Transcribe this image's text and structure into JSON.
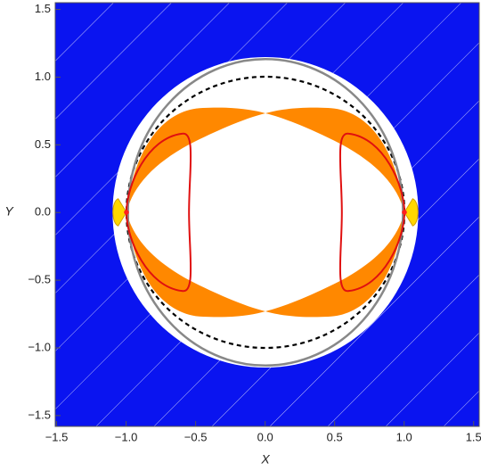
{
  "chart_data": {
    "type": "region",
    "x_label": "X",
    "y_label": "Y",
    "xlim": [
      -1.51,
      1.54
    ],
    "ylim": [
      -1.58,
      1.55
    ],
    "xticks": [
      {
        "value": -1.5,
        "label": "−1.5"
      },
      {
        "value": -1,
        "label": "−1.0"
      },
      {
        "value": -0.5,
        "label": "−0.5"
      },
      {
        "value": 0,
        "label": "0.0"
      },
      {
        "value": 0.5,
        "label": "0.5"
      },
      {
        "value": 1,
        "label": "1.0"
      },
      {
        "value": 1.5,
        "label": "1.5"
      }
    ],
    "yticks": [
      {
        "value": -1.5,
        "label": "−1.5"
      },
      {
        "value": -1,
        "label": "−1.0"
      },
      {
        "value": -0.5,
        "label": "−0.5"
      },
      {
        "value": 0,
        "label": "0.0"
      },
      {
        "value": 0.5,
        "label": "0.5"
      },
      {
        "value": 1,
        "label": "1.0"
      },
      {
        "value": 1.5,
        "label": "1.5"
      }
    ]
  }
}
